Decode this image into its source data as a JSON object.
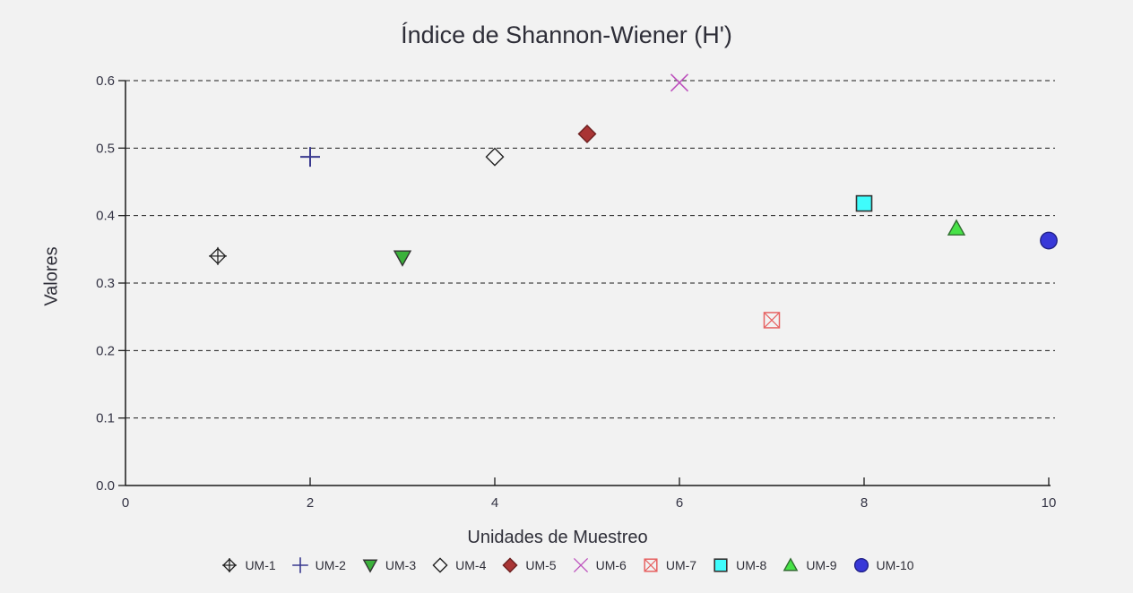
{
  "page": {
    "background": "#f2f2f2"
  },
  "chart_data": {
    "type": "scatter",
    "title": "Índice de Shannon-Wiener (H')",
    "xlabel": "Unidades de Muestreo",
    "ylabel": "Valores",
    "xlim": [
      0,
      10
    ],
    "ylim": [
      0.0,
      0.6
    ],
    "xticks": [
      0,
      2,
      4,
      6,
      8,
      10
    ],
    "yticks": [
      0.0,
      0.1,
      0.2,
      0.3,
      0.4,
      0.5,
      0.6
    ],
    "grid": "horizontal-dashed-black",
    "legend_position": "bottom-center",
    "axis_color": "#1b1b1b",
    "series": [
      {
        "name": "UM-1",
        "x": 1,
        "y": 0.34,
        "marker": "diamond-plus",
        "color": "#222222"
      },
      {
        "name": "UM-2",
        "x": 2,
        "y": 0.487,
        "marker": "plus",
        "color": "#39398f"
      },
      {
        "name": "UM-3",
        "x": 3,
        "y": 0.338,
        "marker": "triangle-down",
        "color": "#3bb13b",
        "stroke": "#333333"
      },
      {
        "name": "UM-4",
        "x": 4,
        "y": 0.487,
        "marker": "diamond",
        "color": "#f6f6f6",
        "stroke": "#222222"
      },
      {
        "name": "UM-5",
        "x": 5,
        "y": 0.521,
        "marker": "diamond",
        "color": "#a93535",
        "stroke": "#6d2020"
      },
      {
        "name": "UM-6",
        "x": 6,
        "y": 0.597,
        "marker": "x",
        "color": "#bd50bd"
      },
      {
        "name": "UM-7",
        "x": 7,
        "y": 0.245,
        "marker": "square-x",
        "color": "#e66262"
      },
      {
        "name": "UM-8",
        "x": 8,
        "y": 0.418,
        "marker": "square",
        "color": "#3ffcfc",
        "stroke": "#333333"
      },
      {
        "name": "UM-9",
        "x": 9,
        "y": 0.381,
        "marker": "triangle-up",
        "color": "#47e247",
        "stroke": "#2f6b2f"
      },
      {
        "name": "UM-10",
        "x": 10,
        "y": 0.363,
        "marker": "circle",
        "color": "#3838d8",
        "stroke": "#222288"
      }
    ]
  }
}
